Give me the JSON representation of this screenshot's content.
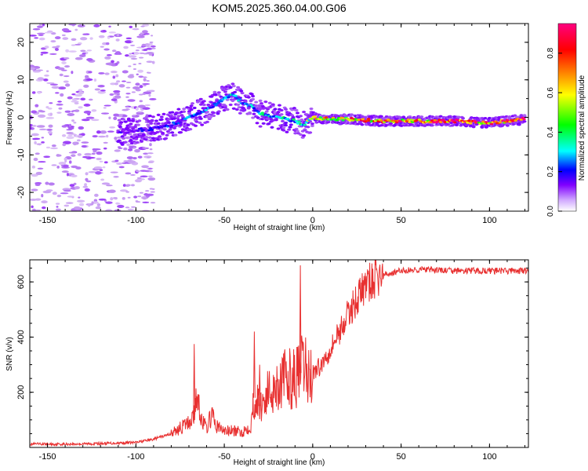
{
  "chart_data": [
    {
      "type": "heatmap",
      "title": "KOM5.2025.360.04.00.G06",
      "xlabel": "Height of straight line (km)",
      "ylabel": "Frequency (Hz)",
      "xlim": [
        -160,
        122
      ],
      "ylim": [
        -25,
        25
      ],
      "xticks": [
        -150,
        -100,
        -50,
        0,
        50,
        100
      ],
      "xtick_labels": [
        "-150",
        "-100",
        "-50",
        "0",
        "50",
        "100"
      ],
      "yticks": [
        -20,
        -10,
        0,
        10,
        20
      ],
      "ytick_labels": [
        "-20",
        "-10",
        "0",
        "10",
        "20"
      ],
      "colorbar": {
        "label": "Normalized spectral amplitude",
        "range": [
          0,
          0.95
        ],
        "ticks": [
          0.0,
          0.2,
          0.4,
          0.6,
          0.8
        ],
        "tick_labels": [
          "0.0",
          "0.2",
          "0.4",
          "0.6",
          "0.8"
        ],
        "colors": [
          "#ffffff",
          "#c090f0",
          "#8000ff",
          "#0000ff",
          "#00ffff",
          "#00ff00",
          "#ffff00",
          "#ff8000",
          "#ff0000",
          "#ff0080"
        ]
      },
      "ridge": {
        "x": [
          -110,
          -100,
          -90,
          -80,
          -70,
          -60,
          -50,
          -45,
          -40,
          -35,
          -30,
          -20,
          -10,
          -5,
          0,
          10,
          20,
          40,
          60,
          80,
          100,
          120
        ],
        "y": [
          -4,
          -3.5,
          -3,
          -2,
          0,
          2,
          5,
          6,
          4,
          3,
          1,
          0,
          -1,
          -2,
          0,
          -0.5,
          -0.5,
          -1,
          -1,
          -1,
          -1.5,
          -0.5
        ],
        "amplitude": [
          0.25,
          0.3,
          0.3,
          0.35,
          0.4,
          0.4,
          0.4,
          0.45,
          0.4,
          0.4,
          0.45,
          0.5,
          0.45,
          0.5,
          0.7,
          0.75,
          0.8,
          0.85,
          0.9,
          0.9,
          0.9,
          0.95
        ]
      }
    },
    {
      "type": "line",
      "xlabel": "Height of straight line (km)",
      "ylabel": "SNR (v/v)",
      "xlim": [
        -160,
        122
      ],
      "ylim": [
        0,
        680
      ],
      "xticks": [
        -150,
        -100,
        -50,
        0,
        50,
        100
      ],
      "xtick_labels": [
        "-150",
        "-100",
        "-50",
        "0",
        "50",
        "100"
      ],
      "yticks": [
        200,
        400,
        600
      ],
      "ytick_labels": [
        "200",
        "400",
        "600"
      ],
      "series": [
        {
          "name": "SNR",
          "color": "#e83030",
          "x": [
            -160,
            -140,
            -120,
            -100,
            -90,
            -80,
            -75,
            -70,
            -67,
            -65,
            -63,
            -60,
            -57,
            -55,
            -50,
            -45,
            -40,
            -35,
            -33,
            -30,
            -25,
            -20,
            -15,
            -10,
            -7,
            -5,
            -3,
            0,
            5,
            10,
            15,
            20,
            25,
            30,
            40,
            50,
            60,
            80,
            100,
            122
          ],
          "y": [
            12,
            12,
            14,
            18,
            30,
            50,
            70,
            90,
            120,
            200,
            100,
            70,
            120,
            80,
            60,
            60,
            55,
            80,
            180,
            150,
            200,
            230,
            250,
            250,
            270,
            300,
            260,
            270,
            300,
            360,
            420,
            480,
            540,
            590,
            625,
            640,
            645,
            640,
            640,
            640
          ],
          "spikes": [
            {
              "x": -67,
              "y": 375
            },
            {
              "x": -33,
              "y": 420
            },
            {
              "x": -30,
              "y": 300
            },
            {
              "x": -7,
              "y": 660
            }
          ]
        }
      ]
    }
  ]
}
